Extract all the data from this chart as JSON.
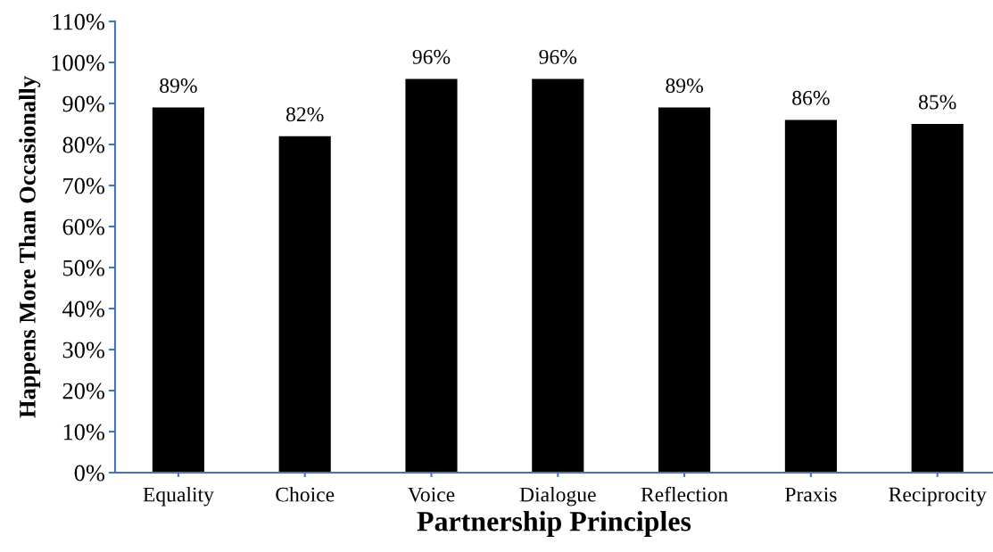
{
  "chart_data": {
    "type": "bar",
    "categories": [
      "Equality",
      "Choice",
      "Voice",
      "Dialogue",
      "Reflection",
      "Praxis",
      "Reciprocity"
    ],
    "values": [
      89,
      82,
      96,
      96,
      89,
      86,
      85
    ],
    "color": "#000000",
    "value_labels": [
      "89%",
      "82%",
      "96%",
      "96%",
      "89%",
      "86%",
      "85%"
    ],
    "xlabel": "Partnership Principles",
    "ylabel": "Happens More Than Occasionally",
    "ylim": [
      0,
      110
    ],
    "yticks": [
      {
        "value": 0,
        "label": "0%"
      },
      {
        "value": 10,
        "label": "10%"
      },
      {
        "value": 20,
        "label": "20%"
      },
      {
        "value": 30,
        "label": "30%"
      },
      {
        "value": 40,
        "label": "40%"
      },
      {
        "value": 50,
        "label": "50%"
      },
      {
        "value": 60,
        "label": "60%"
      },
      {
        "value": 70,
        "label": "70%"
      },
      {
        "value": 80,
        "label": "80%"
      },
      {
        "value": 90,
        "label": "90%"
      },
      {
        "value": 100,
        "label": "100%"
      },
      {
        "value": 110,
        "label": "110%"
      }
    ]
  }
}
